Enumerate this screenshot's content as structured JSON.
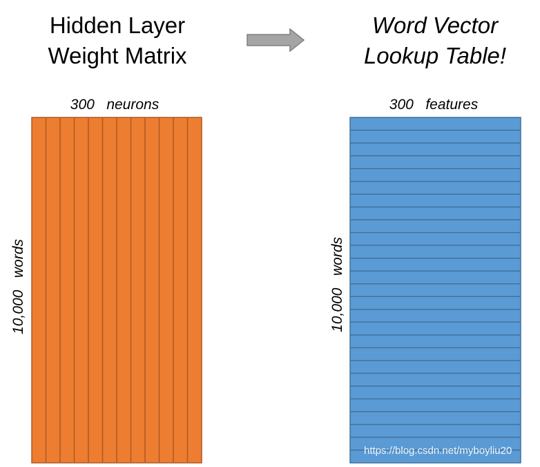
{
  "left": {
    "title_lines": [
      "Hidden Layer",
      "Weight Matrix"
    ],
    "columns_label": "300   neurons",
    "rows_label": "10,000   words"
  },
  "right": {
    "title_lines": [
      "Word Vector",
      "Lookup Table!"
    ],
    "columns_label": "300   features",
    "rows_label": "10,000   words"
  },
  "watermark": "https://blog.csdn.net/myboyliu20"
}
